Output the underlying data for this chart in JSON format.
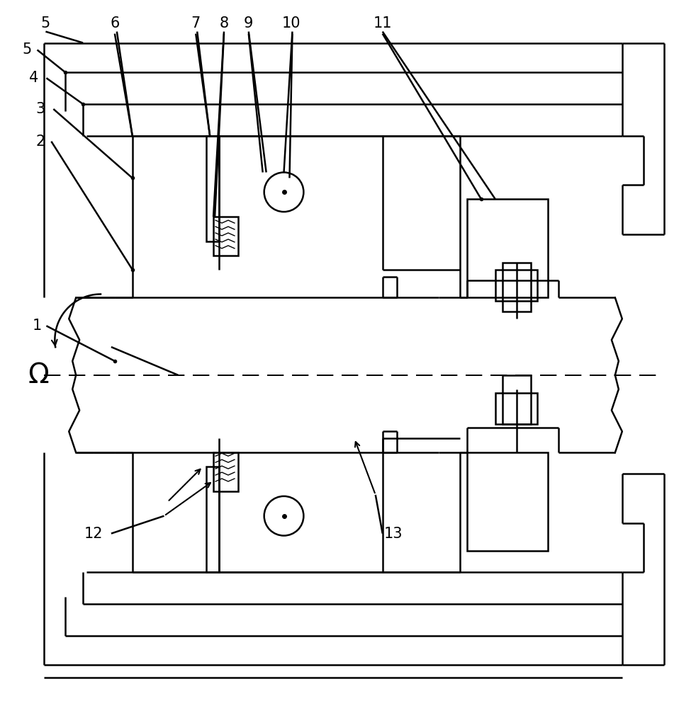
{
  "bg_color": "#ffffff",
  "lc": "#000000",
  "lw": 1.8,
  "fig_w": 9.82,
  "fig_h": 10.0,
  "label_fs": 15
}
